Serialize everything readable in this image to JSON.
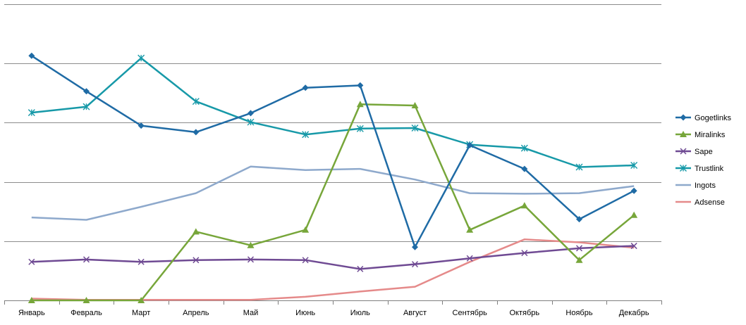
{
  "chart_data": {
    "type": "line",
    "categories": [
      "Январь",
      "Февраль",
      "Март",
      "Апрель",
      "Май",
      "Июнь",
      "Июль",
      "Август",
      "Сентябрь",
      "Октябрь",
      "Ноябрь",
      "Декабрь"
    ],
    "ylim": [
      0,
      5
    ],
    "grid": true,
    "legend_position": "right",
    "series": [
      {
        "name": "Gogetlinks",
        "color": "#1F6BA5",
        "marker": "diamond",
        "values": [
          4.13,
          3.53,
          2.95,
          2.84,
          3.16,
          3.59,
          3.63,
          0.9,
          2.62,
          2.22,
          1.37,
          1.85
        ]
      },
      {
        "name": "Miralinks",
        "color": "#77A63A",
        "marker": "triangle",
        "values": [
          0,
          0,
          0,
          1.16,
          0.93,
          1.19,
          3.31,
          3.29,
          1.19,
          1.6,
          0.68,
          1.44
        ]
      },
      {
        "name": "Sape",
        "color": "#6F4A93",
        "marker": "x",
        "values": [
          0.65,
          0.69,
          0.65,
          0.68,
          0.69,
          0.68,
          0.53,
          0.61,
          0.71,
          0.8,
          0.88,
          0.92
        ]
      },
      {
        "name": "Trustlink",
        "color": "#1799A8",
        "marker": "asterisk",
        "values": [
          3.17,
          3.27,
          4.09,
          3.36,
          3.01,
          2.8,
          2.9,
          2.91,
          2.63,
          2.57,
          2.25,
          2.28
        ]
      },
      {
        "name": "Ingots",
        "color": "#8EA9CC",
        "marker": "none",
        "values": [
          1.4,
          1.36,
          1.58,
          1.81,
          2.26,
          2.2,
          2.22,
          2.04,
          1.81,
          1.8,
          1.81,
          1.93
        ]
      },
      {
        "name": "Adsense",
        "color": "#E58A8A",
        "marker": "none",
        "values": [
          0.03,
          0.01,
          0.01,
          0.01,
          0.01,
          0.06,
          0.15,
          0.23,
          0.65,
          1.03,
          0.98,
          0.89
        ]
      }
    ]
  }
}
